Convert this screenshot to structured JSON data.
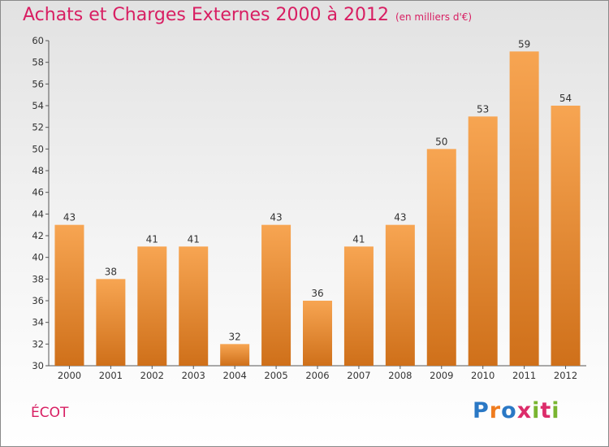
{
  "header": {
    "title": "Achats et Charges Externes 2000 à 2012",
    "subtitle": "(en milliers d'€)"
  },
  "footer": {
    "town": "ÉCOT",
    "logo_letters": [
      "P",
      "r",
      "o",
      "x",
      "i",
      "t",
      "i"
    ]
  },
  "colors": {
    "title": "#d81e62",
    "bar_top": "#f7a552",
    "bar_bottom": "#cf701a",
    "logo": [
      "#2a78c5",
      "#ef7c1f",
      "#2a78c5",
      "#dc2c6a",
      "#79b530",
      "#dc2c6a",
      "#79b530"
    ]
  },
  "chart_data": {
    "type": "bar",
    "title": "Achats et Charges Externes 2000 à 2012",
    "subtitle": "(en milliers d'€)",
    "categories": [
      "2000",
      "2001",
      "2002",
      "2003",
      "2004",
      "2005",
      "2006",
      "2007",
      "2008",
      "2009",
      "2010",
      "2011",
      "2012"
    ],
    "values": [
      43,
      38,
      41,
      41,
      32,
      43,
      36,
      41,
      43,
      50,
      53,
      59,
      54
    ],
    "ylim": [
      30,
      60
    ],
    "yticks": [
      30,
      32,
      34,
      36,
      38,
      40,
      42,
      44,
      46,
      48,
      50,
      52,
      54,
      56,
      58,
      60
    ],
    "xlabel": "",
    "ylabel": "",
    "grid": false,
    "legend": "none"
  }
}
